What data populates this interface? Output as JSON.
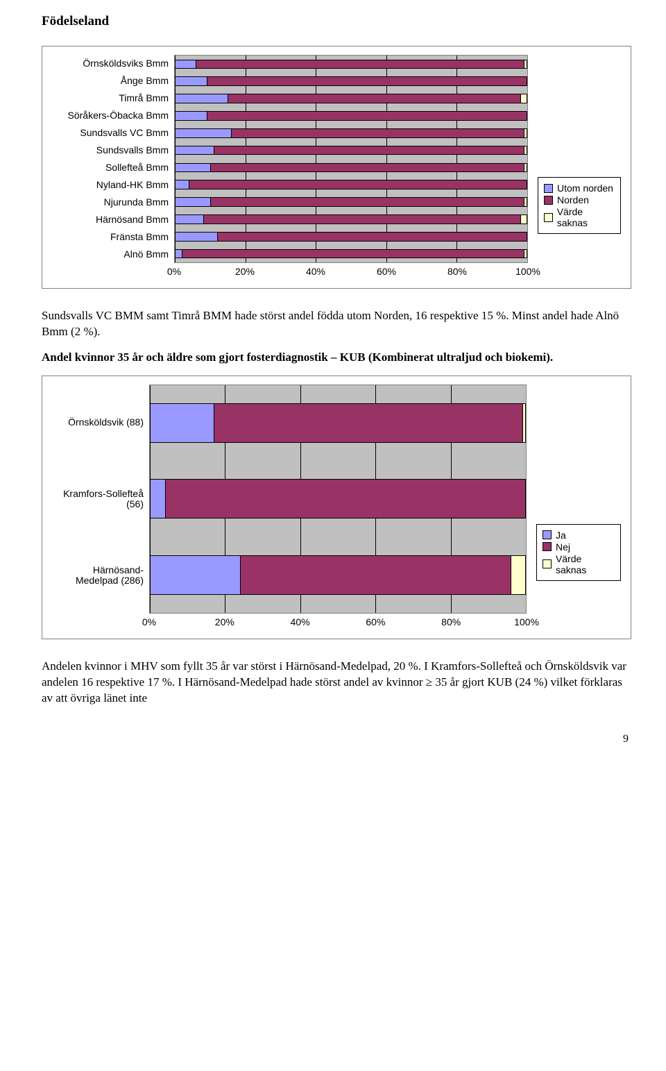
{
  "page_title": "Födelseland",
  "paragraph_1": "Sundsvalls VC BMM samt Timrå BMM hade störst andel födda utom Norden, 16 respektive 15 %. Minst andel hade Alnö Bmm (2 %).",
  "paragraph_2": "Andel kvinnor 35 år och äldre som gjort fosterdiagnostik – KUB (Kombinerat ultraljud och biokemi).",
  "paragraph_3": "Andelen kvinnor i MHV som fyllt 35 år var störst i Härnösand-Medelpad, 20 %. I Kramfors-Sollefteå och Örnsköldsvik var andelen 16 respektive 17 %.  I Härnösand-Medelpad hade störst andel av kvinnor ≥ 35 år gjort KUB (24 %) vilket förklaras av att övriga länet inte",
  "page_number": "9",
  "chart1": {
    "type": "stacked-horizontal-bar",
    "colors": {
      "s1": "#9999ff",
      "s2": "#993366",
      "s3": "#ffffcc"
    },
    "plot_bg": "#c0c0c0",
    "grid_color": "#000000",
    "xticks": [
      "0%",
      "20%",
      "40%",
      "60%",
      "80%",
      "100%"
    ],
    "xlim": [
      0,
      100
    ],
    "legend": [
      "Utom norden",
      "Norden",
      "Värde saknas"
    ],
    "categories": [
      "Örnsköldsviks Bmm",
      "Ånge Bmm",
      "Timrå Bmm",
      "Söråkers-Öbacka Bmm",
      "Sundsvalls VC Bmm",
      "Sundsvalls Bmm",
      "Sollefteå Bmm",
      "Nyland-HK Bmm",
      "Njurunda Bmm",
      "Härnösand Bmm",
      "Fränsta Bmm",
      "Alnö Bmm"
    ],
    "series": [
      {
        "s1": 6,
        "s2": 93,
        "s3": 1
      },
      {
        "s1": 9,
        "s2": 91,
        "s3": 0
      },
      {
        "s1": 15,
        "s2": 83,
        "s3": 2
      },
      {
        "s1": 9,
        "s2": 91,
        "s3": 0
      },
      {
        "s1": 16,
        "s2": 83,
        "s3": 1
      },
      {
        "s1": 11,
        "s2": 88,
        "s3": 1
      },
      {
        "s1": 10,
        "s2": 89,
        "s3": 1
      },
      {
        "s1": 4,
        "s2": 96,
        "s3": 0
      },
      {
        "s1": 10,
        "s2": 89,
        "s3": 1
      },
      {
        "s1": 8,
        "s2": 90,
        "s3": 2
      },
      {
        "s1": 12,
        "s2": 88,
        "s3": 0
      },
      {
        "s1": 2,
        "s2": 97,
        "s3": 1
      }
    ]
  },
  "chart2": {
    "type": "stacked-horizontal-bar",
    "colors": {
      "s1": "#9999ff",
      "s2": "#993366",
      "s3": "#ffffcc"
    },
    "plot_bg": "#c0c0c0",
    "grid_color": "#000000",
    "xticks": [
      "0%",
      "20%",
      "40%",
      "60%",
      "80%",
      "100%"
    ],
    "xlim": [
      0,
      100
    ],
    "legend": [
      "Ja",
      "Nej",
      "Värde saknas"
    ],
    "categories": [
      "Örnsköldsvik (88)",
      "Kramfors-Sollefteå (56)",
      "Härnösand-Medelpad (286)"
    ],
    "series": [
      {
        "s1": 17,
        "s2": 82,
        "s3": 1
      },
      {
        "s1": 4,
        "s2": 96,
        "s3": 0
      },
      {
        "s1": 24,
        "s2": 72,
        "s3": 4
      }
    ]
  }
}
